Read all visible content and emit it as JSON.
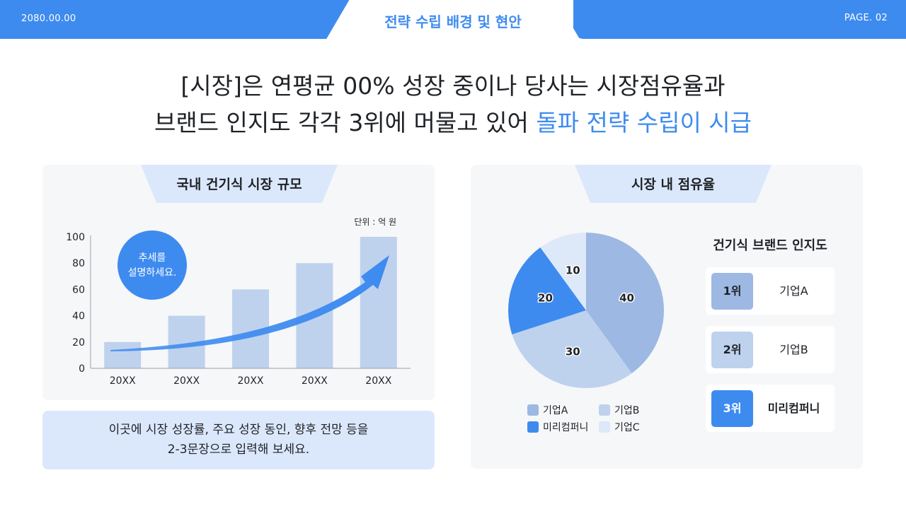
{
  "header": {
    "date": "2080.00.00",
    "title": "전략 수립 배경 및 현안",
    "page": "PAGE. 02"
  },
  "headline": {
    "line1": "[시장]은 연평균 00% 성장 중이나 당사는 시장점유율과",
    "line2_plain": "브랜드 인지도 각각 3위에 머물고 있어 ",
    "line2_accent": "돌파 전략 수립이 시급"
  },
  "left_panel": {
    "title": "국내 건기식 시장 규모",
    "unit": "단위 : 억 원",
    "callout": [
      "추세를",
      "설명하세요."
    ]
  },
  "note": {
    "line1": "이곳에 시장 성장률, 주요 성장 동인, 향후 전망 등을",
    "line2": "2-3문장으로 입력해 보세요."
  },
  "right_panel": {
    "title": "시장 내 점유율",
    "ranking_title": "건기식 브랜드 인지도",
    "ranking": [
      {
        "rank": "1위",
        "name": "기업A",
        "color": "#9db8e3"
      },
      {
        "rank": "2위",
        "name": "기업B",
        "color": "#bed2ee"
      },
      {
        "rank": "3위",
        "name": "미리컴퍼니",
        "color": "#3e8bf0"
      }
    ]
  },
  "colors": {
    "accent": "#3e8bf0",
    "bar": "#bed2ee",
    "panel": "#f6f7f9",
    "light_blue": "#dbe8fc"
  },
  "chart_data": [
    {
      "type": "bar",
      "categories": [
        "20XX",
        "20XX",
        "20XX",
        "20XX",
        "20XX"
      ],
      "values": [
        20,
        40,
        60,
        80,
        100
      ],
      "title": "국내 건기식 시장 규모",
      "ylim": [
        0,
        100
      ],
      "yticks": [
        0,
        20,
        40,
        60,
        80,
        100
      ],
      "grid": false
    },
    {
      "type": "pie",
      "labels": [
        "기업A",
        "기업B",
        "미리컴퍼니",
        "기업C"
      ],
      "values": [
        40,
        30,
        20,
        10
      ],
      "colors": [
        "#9db8e3",
        "#bed2ee",
        "#3e8bf0",
        "#dde8f9"
      ],
      "title": "시장 내 점유율",
      "legend": "bottom"
    }
  ]
}
